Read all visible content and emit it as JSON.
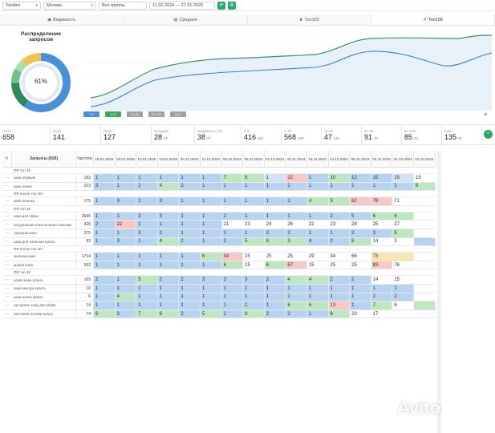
{
  "toolbar": {
    "engine": "Yandex",
    "region": "Москва",
    "groups": "Все группы",
    "dates": "11.02.2024 — 27.01.2025"
  },
  "tabs": [
    "Видимость",
    "Средняя",
    "Топ100",
    "Топ100"
  ],
  "donut": {
    "title": "Распределение запросов",
    "center": "61%"
  },
  "chart_legend": [
    "1-3",
    "1-10",
    "11-30",
    "31-100",
    "101+"
  ],
  "stats": [
    {
      "lbl": "(774)",
      "val": "658",
      "sub": ""
    },
    {
      "lbl": "(115)",
      "val": "141",
      "sub": ""
    },
    {
      "lbl": "(114)",
      "val": "127",
      "sub": ""
    },
    {
      "lbl": "Средняя",
      "val": "28",
      "sub": "16"
    },
    {
      "lbl": "Видимость (%)",
      "val": "38",
      "sub": "27"
    },
    {
      "lbl": "1-3",
      "val": "416",
      "sub": "262"
    },
    {
      "lbl": "1-10",
      "val": "568",
      "sub": "405"
    },
    {
      "lbl": "11-30",
      "val": "47",
      "sub": "314"
    },
    {
      "lbl": "31-50",
      "val": "91",
      "sub": "39"
    },
    {
      "lbl": "51-100",
      "val": "85",
      "sub": "32"
    },
    {
      "lbl": "100+",
      "val": "135",
      "sub": "40"
    }
  ],
  "table": {
    "query_header": "Запросы (926)",
    "freq_header": "Частота",
    "dates": [
      "19.01.2025",
      "16.01.2025",
      "13.01.2025",
      "12.01.2025",
      "30.12.2024",
      "11.12.2024",
      "09.12.2024",
      "06.12.2024",
      "02.12.2024",
      "22.11.2024",
      "15.11.2024",
      "14.11.2024",
      "08.11.2024",
      "02.11.2024",
      "22.10.2024",
      "21.10.2024"
    ],
    "rows": [
      {
        "group": "ПФ топ 40"
      },
      {
        "q": "кожа обувная",
        "f": "193",
        "v": [
          "1",
          "1",
          "1",
          "1",
          "1",
          "1",
          "7",
          "9",
          "1",
          "12",
          "1",
          "10",
          "12",
          "15",
          "15",
          "19"
        ],
        "c": "bbbbbbgglrbgbblw"
      },
      {
        "q": "кожа оленя",
        "f": "223",
        "v": [
          "3",
          "1",
          "2",
          "4",
          "2",
          "1",
          "1",
          "1",
          "1",
          "1",
          "1",
          "1",
          "1",
          "1",
          "1",
          "8"
        ],
        "c": "bbbgbbbbbbbbbbbg"
      },
      {
        "group": "ПФ после топ 40+"
      },
      {
        "q": "кожа ягненка",
        "f": "175",
        "v": [
          "1",
          "3",
          "2",
          "3",
          "1",
          "1",
          "1",
          "1",
          "1",
          "1",
          "4",
          "5",
          "62",
          "79",
          "71",
          ""
        ],
        "c": "bbbbbbbbbbggrrww"
      },
      {
        "group": "ПФ топ 40"
      },
      {
        "q": "кожа для обуви",
        "f": "2645",
        "v": [
          "1",
          "1",
          "3",
          "3",
          "1",
          "1",
          "2",
          "1",
          "1",
          "1",
          "1",
          "2",
          "5",
          "6",
          "6",
          ""
        ],
        "c": "bbbbbbbbbbbbbggw"
      },
      {
        "q": "натуральная кожа интернет магазин",
        "f": "426",
        "v": [
          "2",
          "22",
          "1",
          "1",
          "1",
          "1",
          "21",
          "23",
          "24",
          "26",
          "22",
          "23",
          "28",
          "25",
          "27",
          ""
        ],
        "c": "brbbbbwwwwwwwwww"
      },
      {
        "q": "турецкая кожа",
        "f": "275",
        "v": [
          "1",
          "1",
          "3",
          "2",
          "1",
          "1",
          "1",
          "1",
          "2",
          "2",
          "1",
          "1",
          "2",
          "3",
          "5",
          ""
        ],
        "c": "bbbbbbbbbbbbbbgw"
      },
      {
        "q": "кожа для тиснения купить",
        "f": "93",
        "v": [
          "1",
          "3",
          "1",
          "4",
          "2",
          "1",
          "2",
          "5",
          "6",
          "3",
          "4",
          "2",
          "8",
          "14",
          "3",
          ""
        ],
        "c": "bbbgbbbgggbbgwwb"
      },
      {
        "group": "ПФ после топ 40+"
      },
      {
        "q": "зеленая кожа",
        "f": "1714",
        "v": [
          "1",
          "1",
          "1",
          "1",
          "1",
          "6",
          "34",
          "25",
          "25",
          "25",
          "29",
          "34",
          "66",
          "73",
          "",
          ""
        ],
        "c": "bbbbbgrwwwwwwyyw"
      },
      {
        "q": "рыжая кожа",
        "f": "532",
        "v": [
          "1",
          "1",
          "1",
          "1",
          "1",
          "1",
          "6",
          "25",
          "6",
          "67",
          "25",
          "25",
          "25",
          "83",
          "76",
          ""
        ],
        "c": "bbbbbbgwgrwwwrww"
      },
      {
        "group": "ПФ топ 40"
      },
      {
        "q": "серая кожа купить",
        "f": "109",
        "v": [
          "2",
          "1",
          "5",
          "2",
          "2",
          "3",
          "3",
          "3",
          "2",
          "4",
          "4",
          "2",
          "2",
          "14",
          "15",
          ""
        ],
        "c": "bbgbbbbbbggbbwww"
      },
      {
        "q": "кожа кенгуру купить",
        "f": "10",
        "v": [
          "1",
          "1",
          "1",
          "1",
          "1",
          "1",
          "1",
          "1",
          "1",
          "1",
          "1",
          "1",
          "1",
          "1",
          "1",
          ""
        ],
        "c": "bbbbbbbbbbbbbbbw"
      },
      {
        "q": "кожа наппа купить",
        "f": "6",
        "v": [
          "1",
          "4",
          "1",
          "1",
          "1",
          "1",
          "1",
          "1",
          "1",
          "1",
          "1",
          "1",
          "1",
          "2",
          "2",
          ""
        ],
        "c": "bgbbbbbbbbbbbbbw"
      },
      {
        "q": "где купить кожу для обуви",
        "f": "14",
        "v": [
          "1",
          "1",
          "1",
          "1",
          "1",
          "1",
          "1",
          "1",
          "1",
          "6",
          "6",
          "13",
          "1",
          "7",
          "6",
          ""
        ],
        "c": "bbbbbbbbbggrbgwg"
      },
      {
        "q": "заготовки из кожи купить",
        "f": "74",
        "v": [
          "6",
          "3",
          "7",
          "6",
          "2",
          "5",
          "1",
          "8",
          "2",
          "3",
          "1",
          "8",
          "20",
          "17",
          "",
          ""
        ],
        "c": "gbggbgbgbbbgwwww"
      }
    ]
  },
  "watermark": "Avito"
}
